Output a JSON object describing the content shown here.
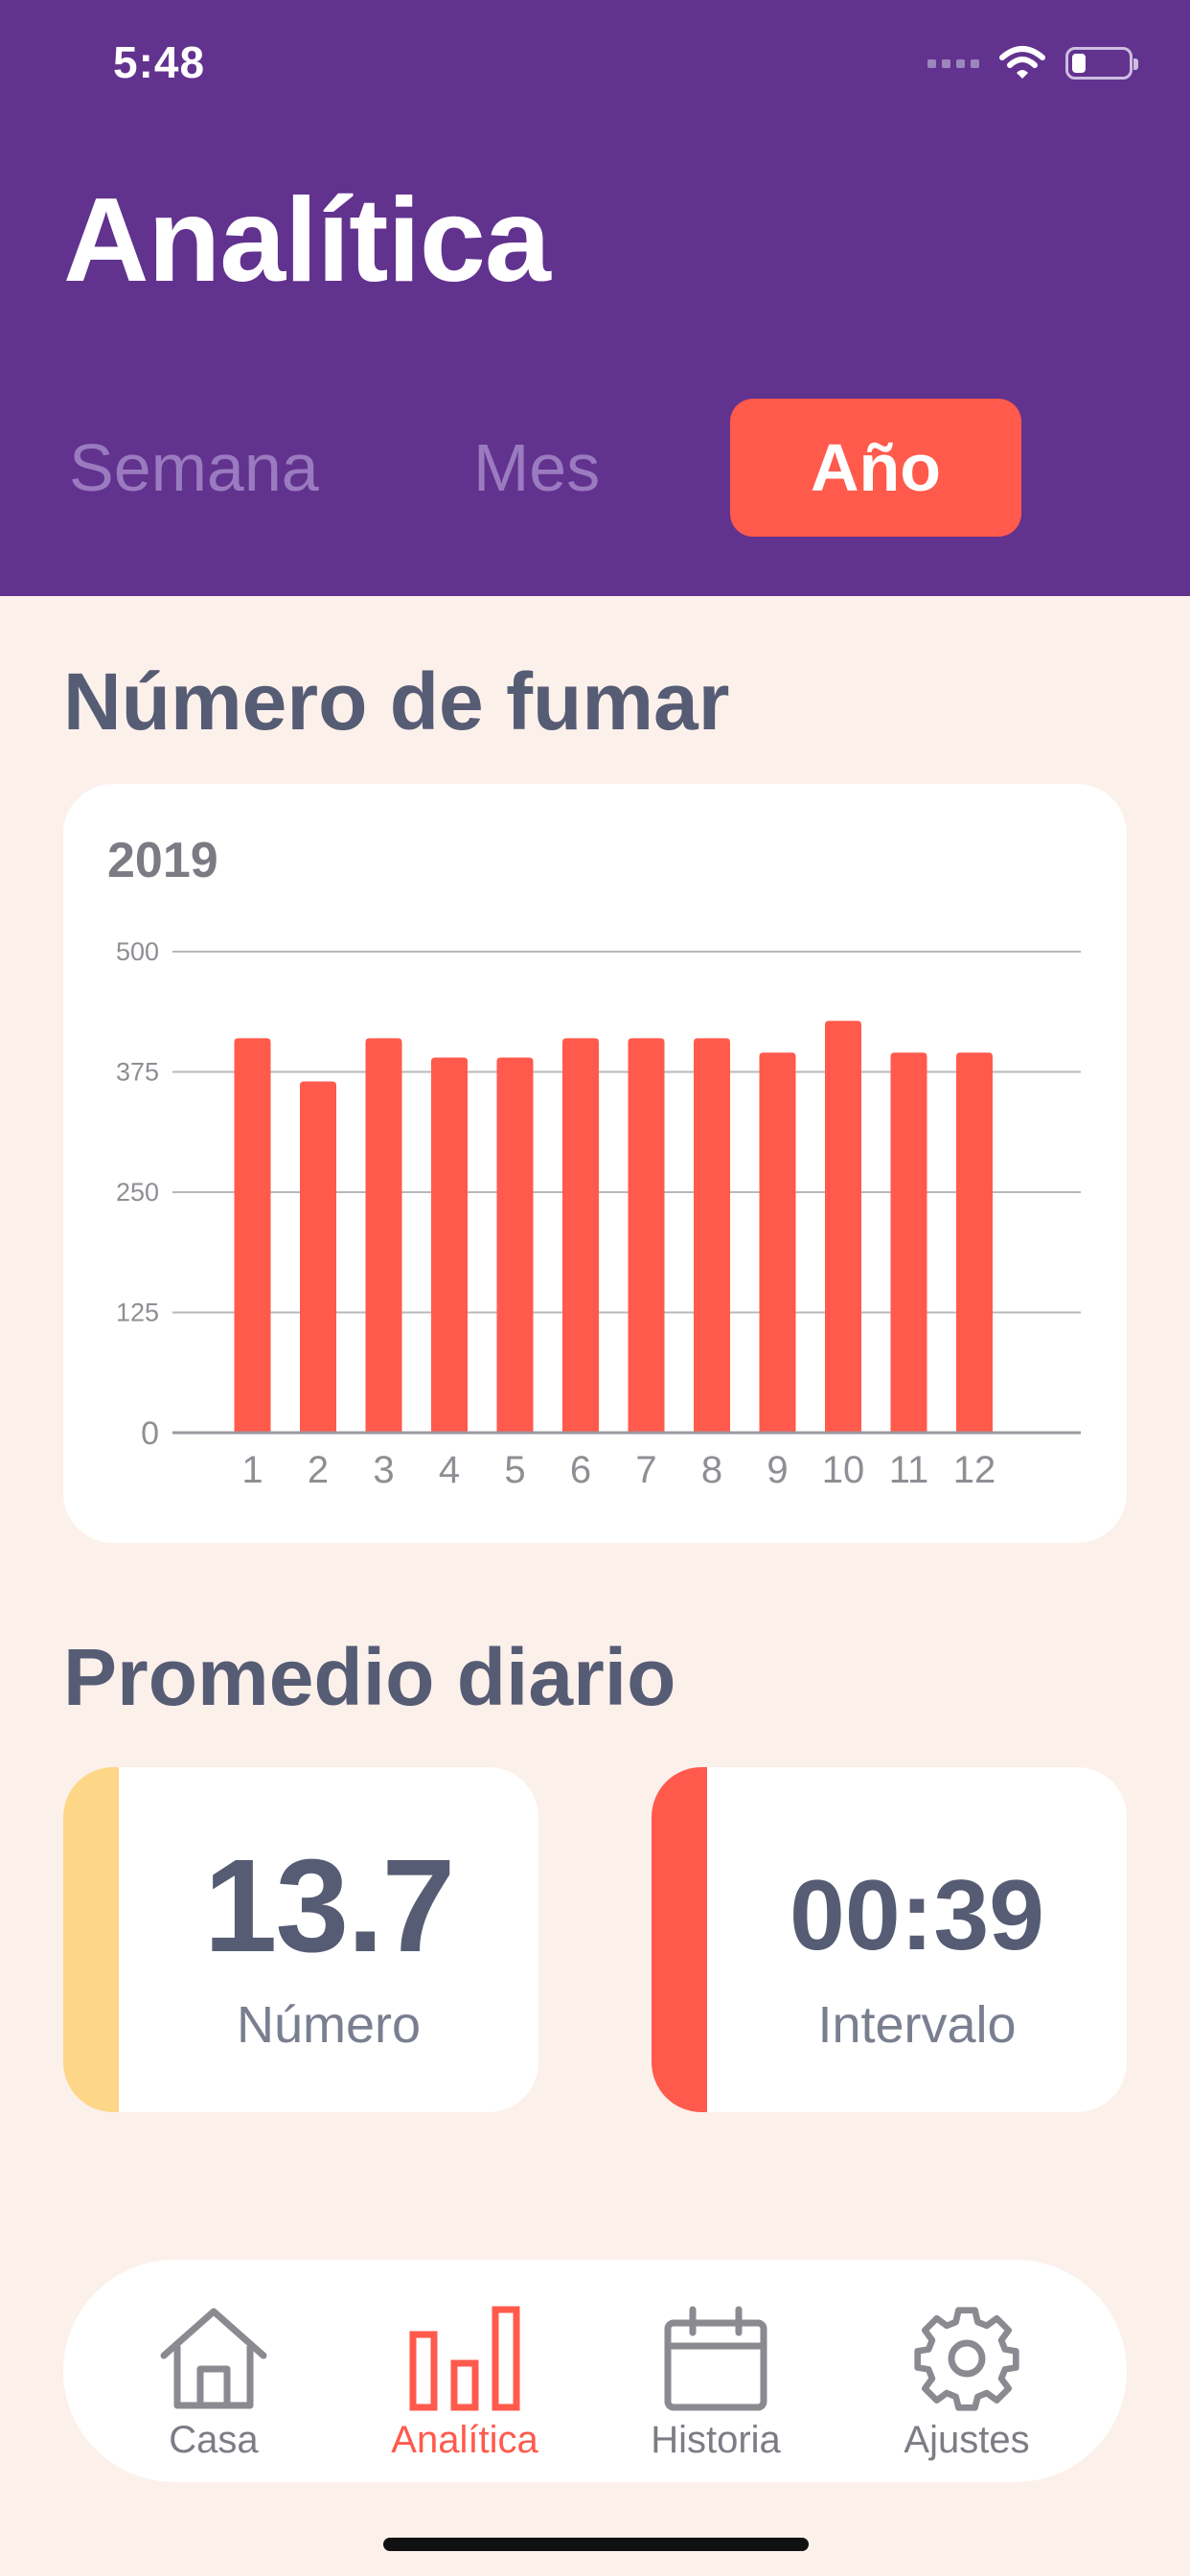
{
  "status_bar": {
    "time": "5:48"
  },
  "header": {
    "title": "Analítica",
    "tabs": [
      {
        "label": "Semana",
        "active": false
      },
      {
        "label": "Mes",
        "active": false
      },
      {
        "label": "Año",
        "active": true
      }
    ],
    "background": "#62328F",
    "accent": "#FF5A4C"
  },
  "chart_section": {
    "title": "Número de fumar",
    "year": "2019"
  },
  "chart_data": {
    "type": "bar",
    "title": "2019",
    "categories": [
      "1",
      "2",
      "3",
      "4",
      "5",
      "6",
      "7",
      "8",
      "9",
      "10",
      "11",
      "12"
    ],
    "values": [
      410,
      365,
      410,
      390,
      390,
      410,
      410,
      410,
      395,
      428,
      395,
      395
    ],
    "ylim": [
      0,
      500
    ],
    "yticks": [
      "0",
      "125",
      "250",
      "375",
      "500"
    ],
    "grid": true,
    "bar_color": "#FF5A4C"
  },
  "average_section": {
    "title": "Promedio diario",
    "cards": [
      {
        "value": "13.7",
        "label": "Número",
        "accent": "#FDD687"
      },
      {
        "value": "00:39",
        "label": "Intervalo",
        "accent": "#FF5A4C"
      }
    ]
  },
  "bottom_nav": {
    "items": [
      {
        "label": "Casa",
        "icon": "home-icon",
        "active": false
      },
      {
        "label": "Analítica",
        "icon": "bar-chart-icon",
        "active": true
      },
      {
        "label": "Historia",
        "icon": "calendar-icon",
        "active": false
      },
      {
        "label": "Ajustes",
        "icon": "gear-icon",
        "active": false
      }
    ]
  }
}
